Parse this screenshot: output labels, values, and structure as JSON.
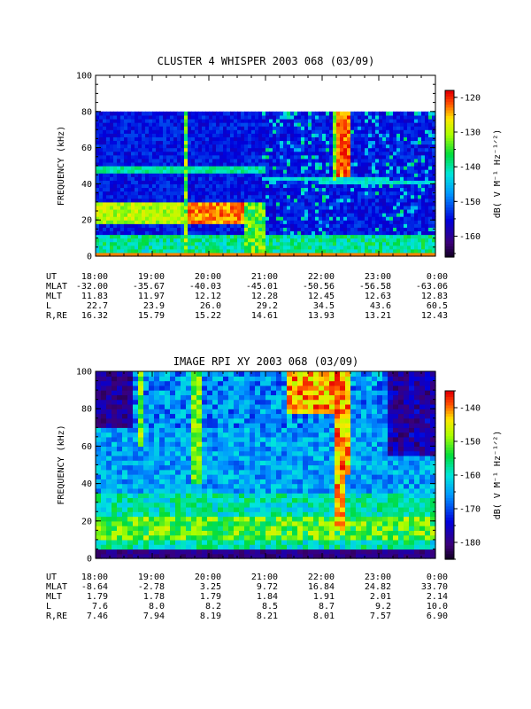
{
  "chart_data": [
    {
      "type": "heatmap",
      "title": "CLUSTER 4 WHISPER 2003 068 (03/09)",
      "ylabel": "FREQUENCY (kHz)",
      "ylim": [
        0,
        100
      ],
      "yticks": [
        "0",
        "20",
        "40",
        "60",
        "80",
        "100"
      ],
      "x_ticks": [
        "18:00",
        "19:00",
        "20:00",
        "21:00",
        "22:00",
        "23:00",
        "0:00"
      ],
      "data_top_khz": 80,
      "colorbar": {
        "label": "dB( V M⁻¹ Hz⁻¹ᐟ²)",
        "ticks": [
          "-120",
          "-130",
          "-140",
          "-150",
          "-160"
        ],
        "range": [
          -166,
          -118
        ]
      },
      "ephemeris": {
        "rows": [
          {
            "label": "UT",
            "values": [
              "18:00",
              "19:00",
              "20:00",
              "21:00",
              "22:00",
              "23:00",
              "0:00"
            ]
          },
          {
            "label": "MLAT",
            "values": [
              "-32.00",
              "-35.67",
              "-40.03",
              "-45.01",
              "-50.56",
              "-56.58",
              "-63.06"
            ]
          },
          {
            "label": "MLT",
            "values": [
              "11.83",
              "11.97",
              "12.12",
              "12.28",
              "12.45",
              "12.63",
              "12.83"
            ]
          },
          {
            "label": "L",
            "values": [
              "22.7",
              "23.9",
              "26.0",
              "29.2",
              "34.5",
              "43.6",
              "60.5"
            ]
          },
          {
            "label": "R,RE",
            "values": [
              "16.32",
              "15.79",
              "15.22",
              "14.61",
              "13.93",
              "13.21",
              "12.43"
            ]
          }
        ]
      }
    },
    {
      "type": "heatmap",
      "title": "IMAGE RPI XY 2003 068 (03/09)",
      "ylabel": "FREQUENCY (kHz)",
      "ylim": [
        0,
        100
      ],
      "yticks": [
        "0",
        "20",
        "40",
        "60",
        "80",
        "100"
      ],
      "x_ticks": [
        "18:00",
        "19:00",
        "20:00",
        "21:00",
        "22:00",
        "23:00",
        "0:00"
      ],
      "colorbar": {
        "label": "dB( V M⁻¹ Hz⁻¹ᐟ²)",
        "ticks": [
          "-140",
          "-150",
          "-160",
          "-170",
          "-180"
        ],
        "range": [
          -185,
          -135
        ]
      },
      "ephemeris": {
        "rows": [
          {
            "label": "UT",
            "values": [
              "18:00",
              "19:00",
              "20:00",
              "21:00",
              "22:00",
              "23:00",
              "0:00"
            ]
          },
          {
            "label": "MLAT",
            "values": [
              "-8.64",
              "-2.78",
              "3.25",
              "9.72",
              "16.84",
              "24.82",
              "33.70"
            ]
          },
          {
            "label": "MLT",
            "values": [
              "1.79",
              "1.78",
              "1.79",
              "1.84",
              "1.91",
              "2.01",
              "2.14"
            ]
          },
          {
            "label": "L",
            "values": [
              "7.6",
              "8.0",
              "8.2",
              "8.5",
              "8.7",
              "9.2",
              "10.0"
            ]
          },
          {
            "label": "R,RE",
            "values": [
              "7.46",
              "7.94",
              "8.19",
              "8.21",
              "8.01",
              "7.57",
              "6.90"
            ]
          }
        ]
      }
    }
  ]
}
